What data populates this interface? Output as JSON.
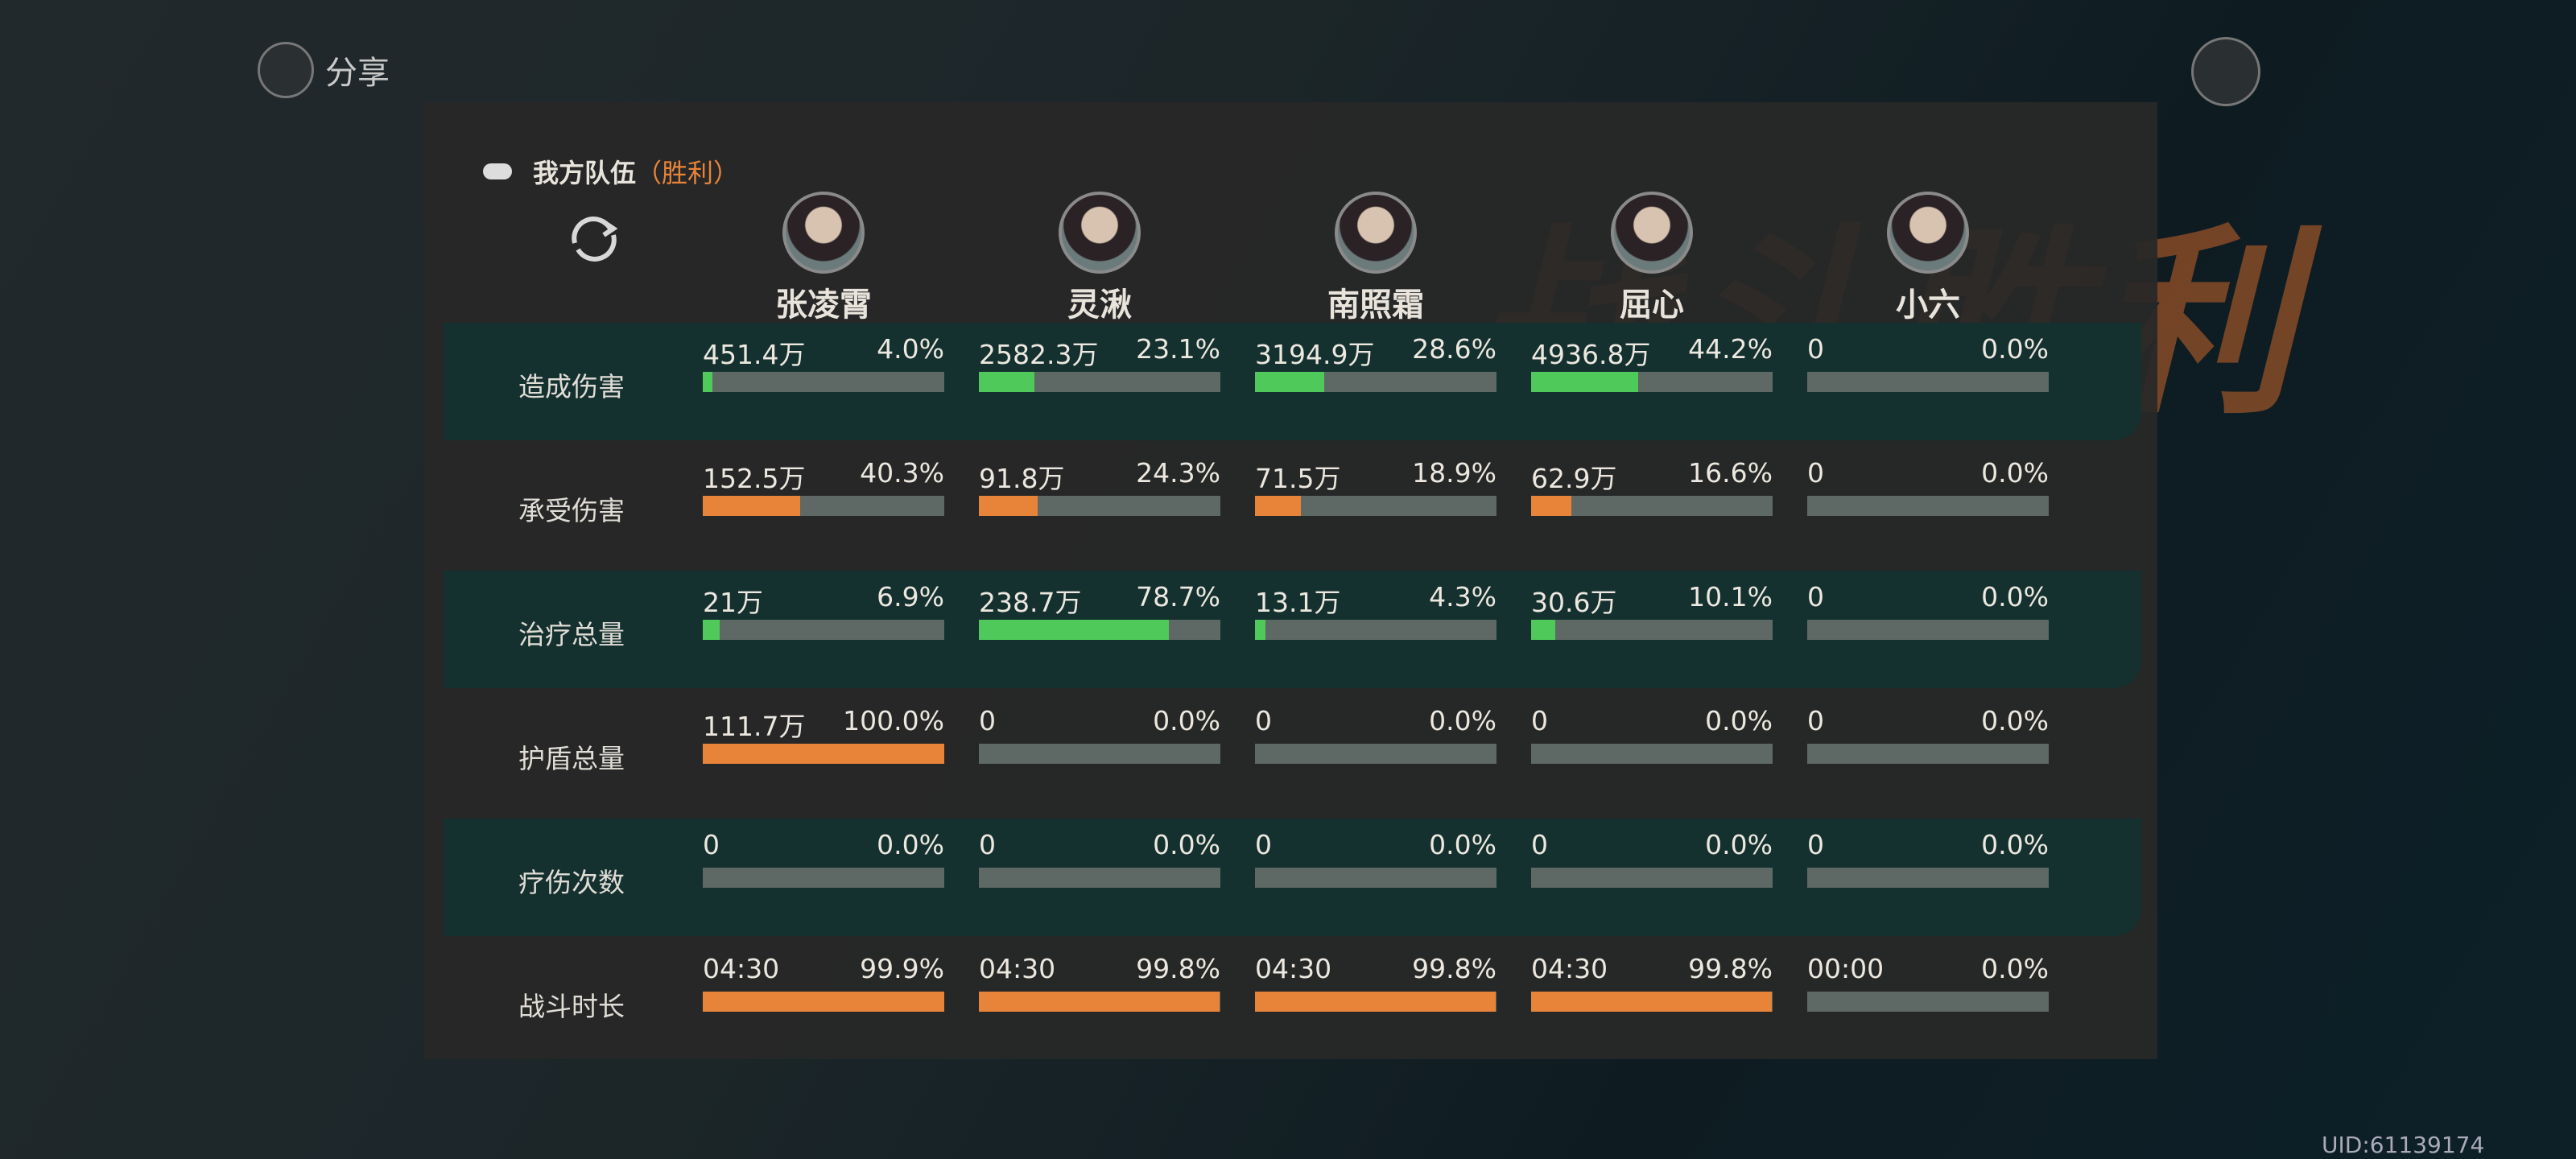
{
  "header": {
    "background_title": "战斗胜利",
    "share": "分享",
    "uid": "UID:61139174"
  },
  "team": {
    "title": "我方队伍",
    "result": "（胜利）"
  },
  "characters": [
    "张凌霄",
    "灵湫",
    "南照霜",
    "屈心",
    "小六"
  ],
  "rows": [
    {
      "label": "造成伤害",
      "color": "#4fc95a",
      "cells": [
        {
          "value": "451.4万",
          "percent": 4.0,
          "percent_label": "4.0%"
        },
        {
          "value": "2582.3万",
          "percent": 23.1,
          "percent_label": "23.1%"
        },
        {
          "value": "3194.9万",
          "percent": 28.6,
          "percent_label": "28.6%"
        },
        {
          "value": "4936.8万",
          "percent": 44.2,
          "percent_label": "44.2%"
        },
        {
          "value": "0",
          "percent": 0,
          "percent_label": "0.0%"
        }
      ]
    },
    {
      "label": "承受伤害",
      "color": "#e8843a",
      "cells": [
        {
          "value": "152.5万",
          "percent": 40.3,
          "percent_label": "40.3%"
        },
        {
          "value": "91.8万",
          "percent": 24.3,
          "percent_label": "24.3%"
        },
        {
          "value": "71.5万",
          "percent": 18.9,
          "percent_label": "18.9%"
        },
        {
          "value": "62.9万",
          "percent": 16.6,
          "percent_label": "16.6%"
        },
        {
          "value": "0",
          "percent": 0,
          "percent_label": "0.0%"
        }
      ]
    },
    {
      "label": "治疗总量",
      "color": "#4fc95a",
      "cells": [
        {
          "value": "21万",
          "percent": 6.9,
          "percent_label": "6.9%"
        },
        {
          "value": "238.7万",
          "percent": 78.7,
          "percent_label": "78.7%"
        },
        {
          "value": "13.1万",
          "percent": 4.3,
          "percent_label": "4.3%"
        },
        {
          "value": "30.6万",
          "percent": 10.1,
          "percent_label": "10.1%"
        },
        {
          "value": "0",
          "percent": 0,
          "percent_label": "0.0%"
        }
      ]
    },
    {
      "label": "护盾总量",
      "color": "#e8843a",
      "cells": [
        {
          "value": "111.7万",
          "percent": 100,
          "percent_label": "100.0%"
        },
        {
          "value": "0",
          "percent": 0,
          "percent_label": "0.0%"
        },
        {
          "value": "0",
          "percent": 0,
          "percent_label": "0.0%"
        },
        {
          "value": "0",
          "percent": 0,
          "percent_label": "0.0%"
        },
        {
          "value": "0",
          "percent": 0,
          "percent_label": "0.0%"
        }
      ]
    },
    {
      "label": "疗伤次数",
      "color": "#e8843a",
      "cells": [
        {
          "value": "0",
          "percent": 0,
          "percent_label": "0.0%"
        },
        {
          "value": "0",
          "percent": 0,
          "percent_label": "0.0%"
        },
        {
          "value": "0",
          "percent": 0,
          "percent_label": "0.0%"
        },
        {
          "value": "0",
          "percent": 0,
          "percent_label": "0.0%"
        },
        {
          "value": "0",
          "percent": 0,
          "percent_label": "0.0%"
        }
      ]
    },
    {
      "label": "战斗时长",
      "color": "#e8843a",
      "cells": [
        {
          "value": "04:30",
          "percent": 99.9,
          "percent_label": "99.9%"
        },
        {
          "value": "04:30",
          "percent": 99.8,
          "percent_label": "99.8%"
        },
        {
          "value": "04:30",
          "percent": 99.8,
          "percent_label": "99.8%"
        },
        {
          "value": "04:30",
          "percent": 99.8,
          "percent_label": "99.8%"
        },
        {
          "value": "00:00",
          "percent": 0,
          "percent_label": "0.0%"
        }
      ]
    }
  ]
}
